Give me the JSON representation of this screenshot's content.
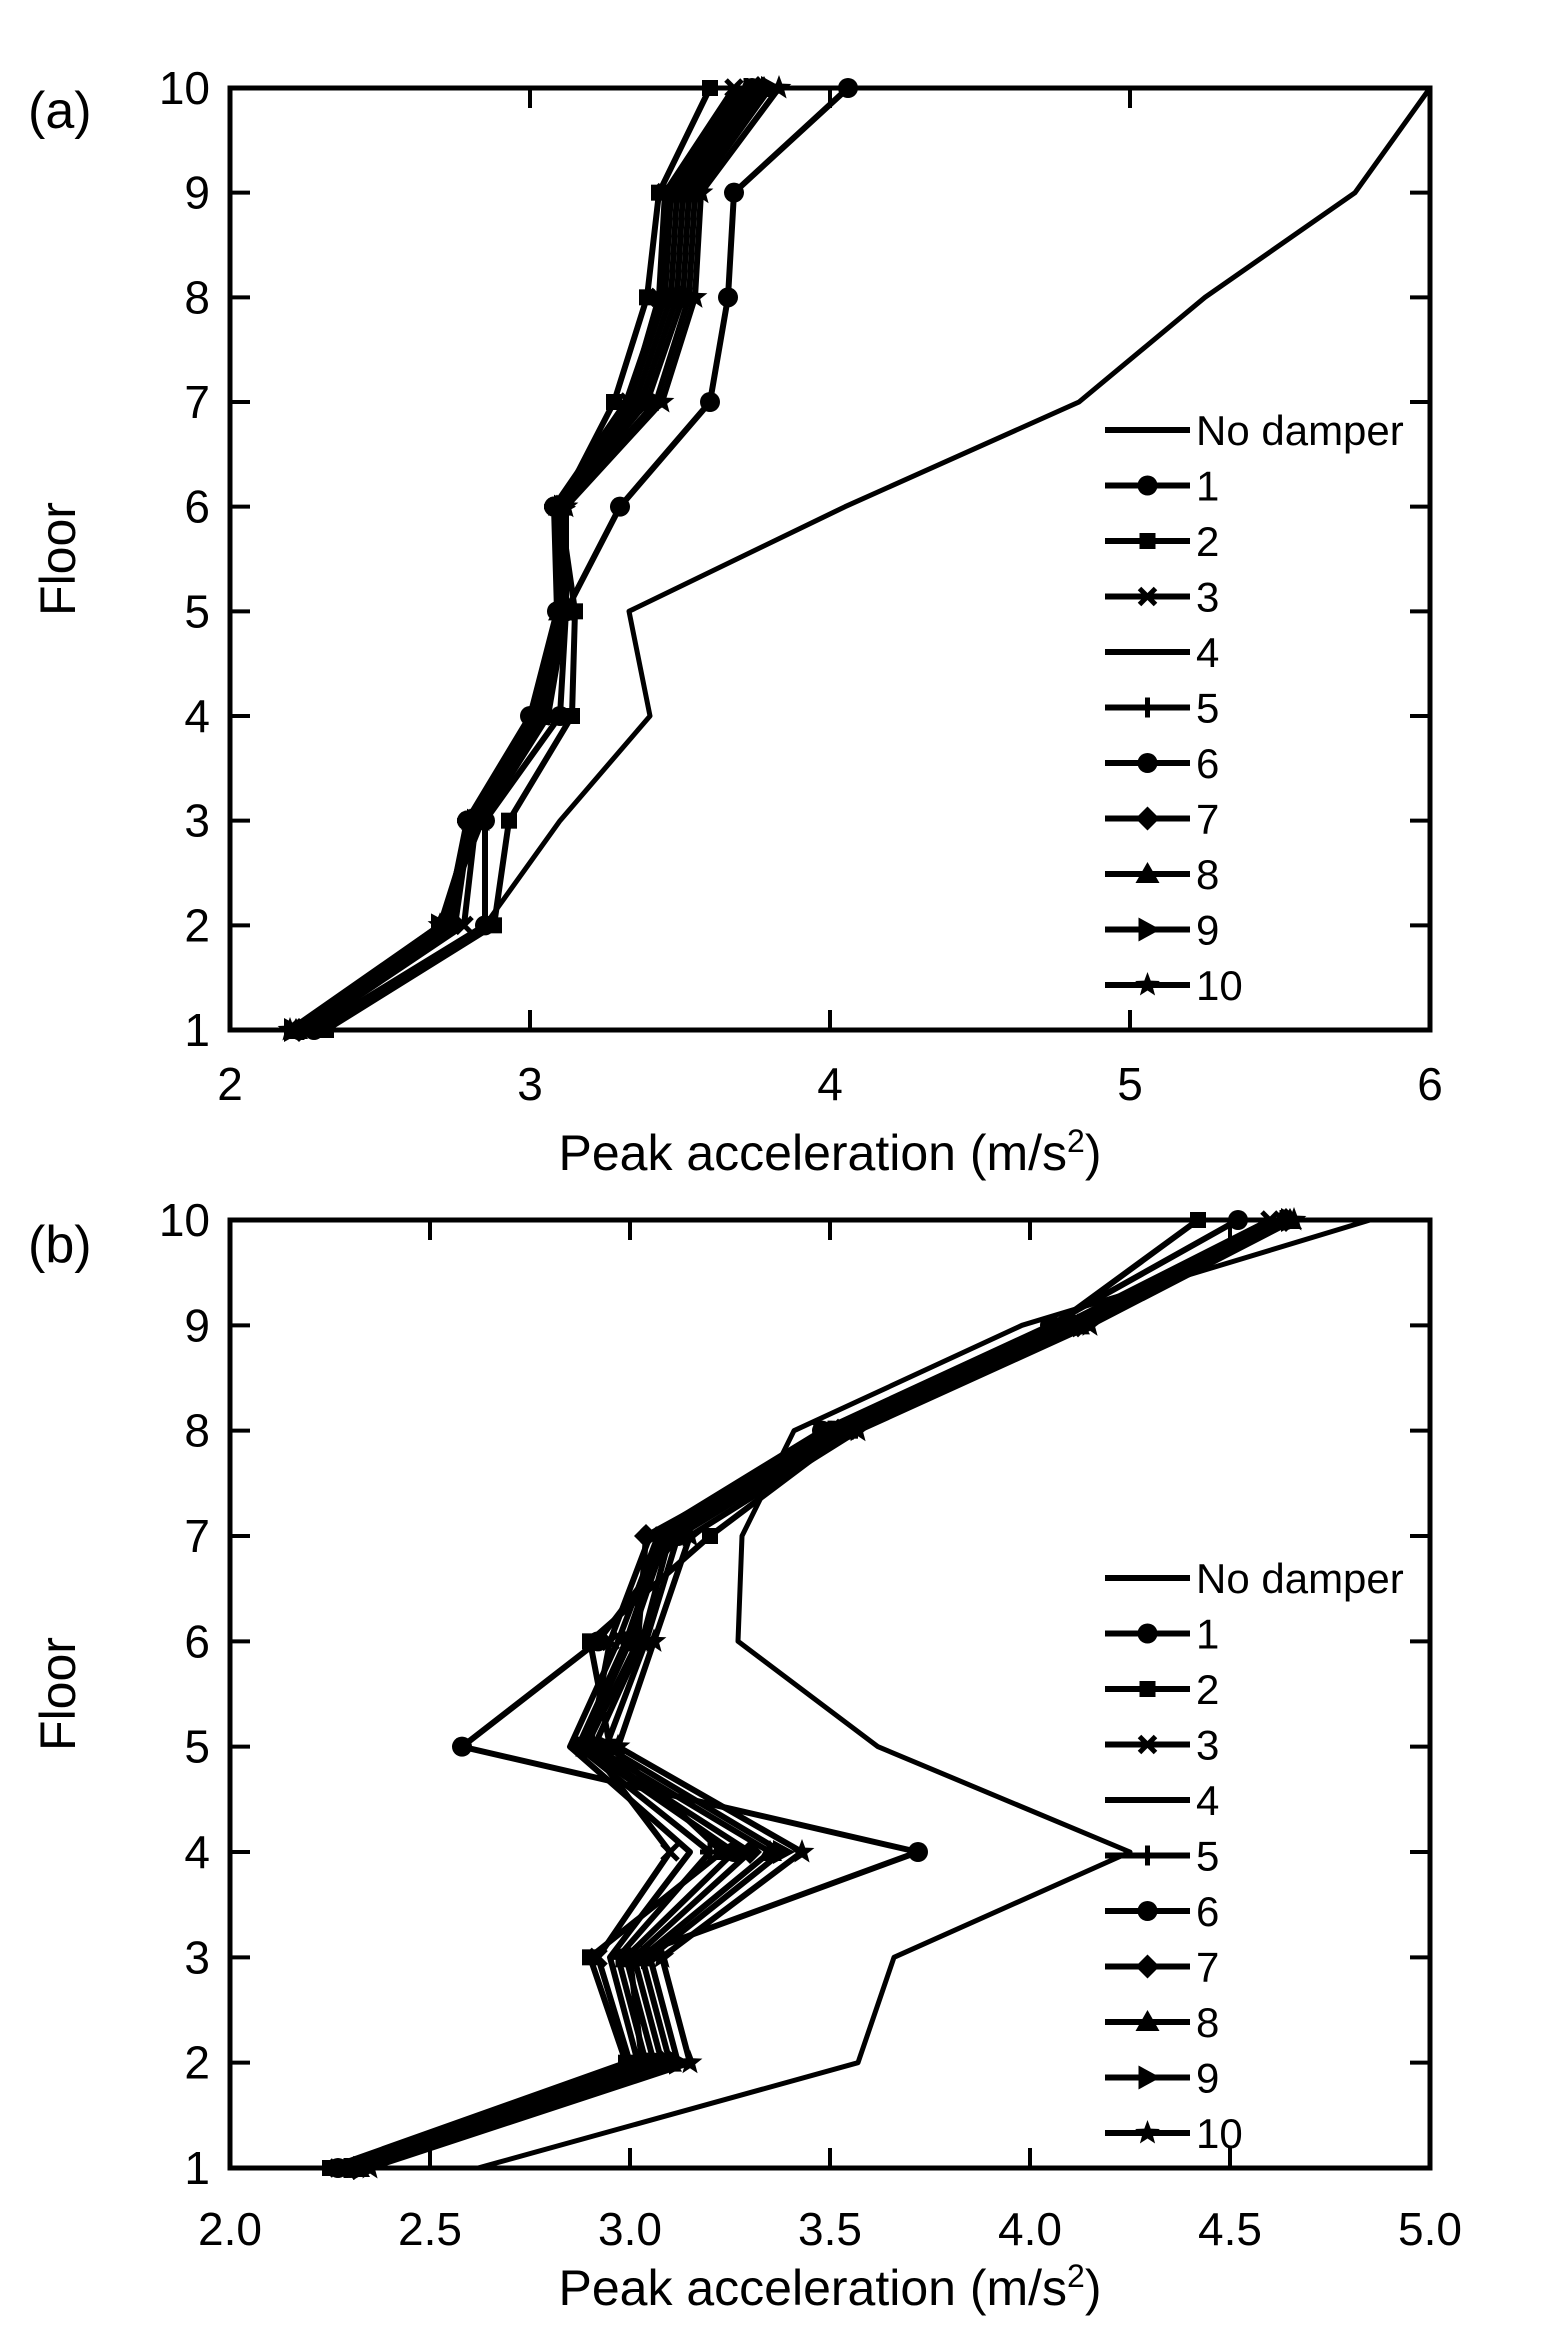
{
  "chart_data": [
    {
      "panel_label": "(a)",
      "type": "line",
      "orientation": "horizontal-profile",
      "xlabel": "Peak acceleration (m/s",
      "xlabel_sup": "2",
      "xlabel_end": ")",
      "ylabel": "Floor",
      "xlim": [
        2,
        6
      ],
      "ylim": [
        1,
        10
      ],
      "xticks": [
        2,
        3,
        4,
        5,
        6
      ],
      "xtick_labels": [
        "2",
        "3",
        "4",
        "5",
        "6"
      ],
      "yticks": [
        1,
        2,
        3,
        4,
        5,
        6,
        7,
        8,
        9,
        10
      ],
      "ytick_labels": [
        "1",
        "2",
        "3",
        "4",
        "5",
        "6",
        "7",
        "8",
        "9",
        "10"
      ],
      "legend_position": "right",
      "floors": [
        1,
        2,
        3,
        4,
        5,
        6,
        7,
        8,
        9,
        10
      ],
      "series": [
        {
          "name": "No damper",
          "marker": "none",
          "values": [
            2.3,
            2.85,
            3.1,
            3.4,
            3.33,
            4.05,
            4.83,
            5.25,
            5.75,
            6.0
          ]
        },
        {
          "name": "1",
          "marker": "circle",
          "values": [
            2.28,
            2.85,
            2.85,
            3.1,
            3.12,
            3.3,
            3.6,
            3.66,
            3.68,
            4.06
          ]
        },
        {
          "name": "2",
          "marker": "square",
          "values": [
            2.32,
            2.88,
            2.93,
            3.14,
            3.15,
            3.1,
            3.28,
            3.39,
            3.43,
            3.6
          ]
        },
        {
          "name": "3",
          "marker": "x",
          "values": [
            2.26,
            2.78,
            2.82,
            3.04,
            3.1,
            3.09,
            3.33,
            3.43,
            3.45,
            3.68
          ]
        },
        {
          "name": "4",
          "marker": "none",
          "values": [
            2.25,
            2.75,
            2.8,
            3.02,
            3.1,
            3.08,
            3.32,
            3.44,
            3.46,
            3.7
          ]
        },
        {
          "name": "5",
          "marker": "plus",
          "values": [
            2.24,
            2.74,
            2.79,
            3.01,
            3.1,
            3.08,
            3.33,
            3.45,
            3.47,
            3.72
          ]
        },
        {
          "name": "6",
          "marker": "circle",
          "values": [
            2.23,
            2.72,
            2.79,
            3.0,
            3.09,
            3.08,
            3.35,
            3.47,
            3.49,
            3.74
          ]
        },
        {
          "name": "7",
          "marker": "diamond",
          "values": [
            2.23,
            2.71,
            2.8,
            3.02,
            3.1,
            3.09,
            3.37,
            3.49,
            3.51,
            3.76
          ]
        },
        {
          "name": "8",
          "marker": "triangle",
          "values": [
            2.22,
            2.7,
            2.81,
            3.03,
            3.1,
            3.1,
            3.39,
            3.51,
            3.53,
            3.78
          ]
        },
        {
          "name": "9",
          "marker": "triangle-right",
          "values": [
            2.21,
            2.7,
            2.82,
            3.04,
            3.11,
            3.11,
            3.42,
            3.53,
            3.55,
            3.8
          ]
        },
        {
          "name": "10",
          "marker": "star",
          "values": [
            2.2,
            2.7,
            2.84,
            3.06,
            3.12,
            3.12,
            3.44,
            3.55,
            3.57,
            3.83
          ]
        }
      ]
    },
    {
      "panel_label": "(b)",
      "type": "line",
      "orientation": "horizontal-profile",
      "xlabel": "Peak acceleration (m/s",
      "xlabel_sup": "2",
      "xlabel_end": ")",
      "ylabel": "Floor",
      "xlim": [
        2.0,
        5.0
      ],
      "ylim": [
        1,
        10
      ],
      "xticks": [
        2.0,
        2.5,
        3.0,
        3.5,
        4.0,
        4.5,
        5.0
      ],
      "xtick_labels": [
        "2.0",
        "2.5",
        "3.0",
        "3.5",
        "4.0",
        "4.5",
        "5.0"
      ],
      "yticks": [
        1,
        2,
        3,
        4,
        5,
        6,
        7,
        8,
        9,
        10
      ],
      "ytick_labels": [
        "1",
        "2",
        "3",
        "4",
        "5",
        "6",
        "7",
        "8",
        "9",
        "10"
      ],
      "legend_position": "right",
      "floors": [
        1,
        2,
        3,
        4,
        5,
        6,
        7,
        8,
        9,
        10
      ],
      "series": [
        {
          "name": "No damper",
          "marker": "none",
          "values": [
            2.62,
            3.57,
            3.66,
            4.25,
            3.62,
            3.27,
            3.28,
            3.41,
            3.98,
            4.85
          ]
        },
        {
          "name": "1",
          "marker": "circle",
          "values": [
            2.27,
            3.03,
            3.0,
            3.72,
            2.58,
            2.92,
            3.12,
            3.48,
            4.05,
            4.52
          ]
        },
        {
          "name": "2",
          "marker": "square",
          "values": [
            2.25,
            2.99,
            2.9,
            3.23,
            2.95,
            2.9,
            3.2,
            3.55,
            4.06,
            4.42
          ]
        },
        {
          "name": "3",
          "marker": "x",
          "values": [
            2.27,
            3.0,
            2.92,
            3.1,
            2.9,
            2.95,
            3.05,
            3.48,
            4.08,
            4.6
          ]
        },
        {
          "name": "4",
          "marker": "none",
          "values": [
            2.28,
            3.02,
            2.95,
            3.15,
            2.85,
            2.97,
            3.07,
            3.49,
            4.09,
            4.62
          ]
        },
        {
          "name": "5",
          "marker": "plus",
          "values": [
            2.29,
            3.04,
            2.97,
            3.2,
            2.87,
            2.99,
            3.08,
            3.5,
            4.1,
            4.63
          ]
        },
        {
          "name": "6",
          "marker": "circle",
          "values": [
            2.3,
            3.06,
            2.99,
            3.26,
            2.88,
            3.0,
            3.09,
            3.51,
            4.11,
            4.64
          ]
        },
        {
          "name": "7",
          "marker": "diamond",
          "values": [
            2.31,
            3.08,
            3.01,
            3.3,
            2.89,
            3.02,
            3.04,
            3.52,
            4.12,
            4.64
          ]
        },
        {
          "name": "8",
          "marker": "triangle",
          "values": [
            2.32,
            3.1,
            3.03,
            3.35,
            2.91,
            3.03,
            3.1,
            3.53,
            4.12,
            4.65
          ]
        },
        {
          "name": "9",
          "marker": "triangle-right",
          "values": [
            2.33,
            3.12,
            3.05,
            3.38,
            2.94,
            3.04,
            3.12,
            3.55,
            4.13,
            4.65
          ]
        },
        {
          "name": "10",
          "marker": "star",
          "values": [
            2.35,
            3.15,
            3.08,
            3.43,
            2.97,
            3.06,
            3.15,
            3.57,
            4.15,
            4.66
          ]
        }
      ]
    }
  ]
}
